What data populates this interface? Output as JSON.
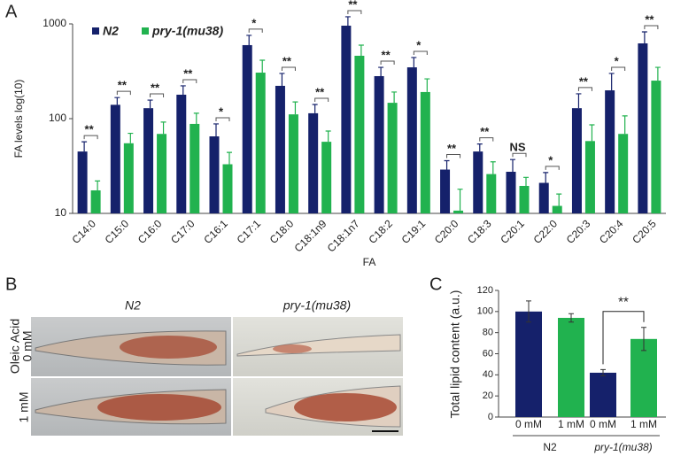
{
  "chart_data": [
    {
      "type": "bar",
      "panel": "A",
      "log_y": true,
      "ylabel": "FA levels log(10)",
      "xlabel": "FA",
      "legend": "upper left",
      "categories": [
        "C14:0",
        "C15:0",
        "C16:0",
        "C17:0",
        "C16:1",
        "C17:1",
        "C18:0",
        "C18:1n9",
        "C18:1n7",
        "C18:2",
        "C19:1",
        "C20:0",
        "C18:3",
        "C20:1",
        "C22:0",
        "C20:3",
        "C20:4",
        "C20:5"
      ],
      "series": [
        {
          "name": "N2",
          "color": "#15216b",
          "values": [
            45,
            140,
            129,
            179,
            65,
            597,
            222,
            114,
            958,
            281,
            348,
            29,
            45,
            27.5,
            21,
            129,
            199,
            623
          ],
          "errors": [
            12,
            27,
            28,
            43,
            23,
            160,
            78,
            27,
            231,
            67,
            94,
            7,
            9,
            9.5,
            6,
            54,
            101,
            201
          ]
        },
        {
          "name": "pry-1(mu38)",
          "color": "#21b24f",
          "values": [
            17.5,
            55,
            69,
            88,
            33,
            306,
            111,
            57,
            461,
            147,
            191,
            10.7,
            26,
            19.5,
            12,
            58,
            69,
            252
          ],
          "errors": [
            4.5,
            15,
            23,
            26,
            11,
            108,
            39,
            17,
            136,
            44,
            72,
            7.3,
            9,
            4.5,
            4,
            28,
            38,
            96
          ]
        }
      ],
      "significance": [
        "**",
        "**",
        "**",
        "**",
        "*",
        "*",
        "**",
        "**",
        "**",
        "**",
        "*",
        "**",
        "**",
        "NS",
        "*",
        "**",
        "*",
        "**"
      ],
      "ylim": [
        10,
        1000
      ],
      "yticks": [
        10,
        100,
        1000
      ]
    },
    {
      "type": "bar",
      "panel": "C",
      "ylabel": "Total lipid content (a.u.)",
      "categories": [
        "0 mM",
        "1 mM",
        "0 mM",
        "1 mM"
      ],
      "groups": [
        "N2",
        "pry-1(mu38)"
      ],
      "values": [
        100,
        94,
        42,
        74
      ],
      "errors": [
        10,
        4,
        3,
        11
      ],
      "colors": [
        "#15216b",
        "#21b24f",
        "#15216b",
        "#21b24f"
      ],
      "significance": "**",
      "ylim": [
        0,
        120
      ],
      "yticks": [
        0,
        20,
        40,
        60,
        80,
        100,
        120
      ]
    }
  ],
  "figure": {
    "panel_labels": [
      "A",
      "B",
      "C"
    ],
    "image_panel": {
      "columns": [
        "N2",
        "pry-1(mu38)"
      ],
      "row_title": "Oleic Acid",
      "rows": [
        "0 mM",
        "1 mM"
      ]
    }
  }
}
